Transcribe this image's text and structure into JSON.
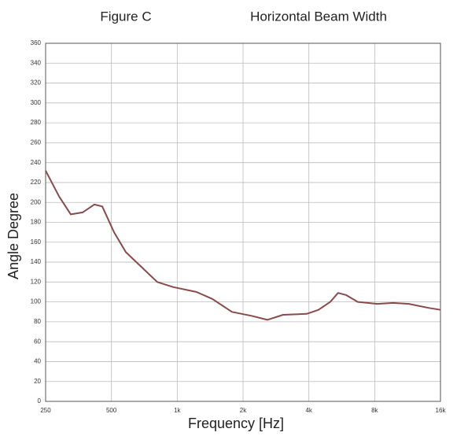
{
  "chart_data": {
    "type": "line",
    "title": "Figure C",
    "subtitle": "Horizontal Beam Width",
    "x_label": "Frequency [Hz]",
    "y_label": "Angle Degree",
    "x": [
      250,
      288,
      326,
      369,
      418,
      454,
      514,
      582,
      687,
      810,
      956,
      1226,
      1447,
      1780,
      2188,
      2583,
      3048,
      3908,
      4425,
      5011,
      5443,
      5913,
      6695,
      8236,
      9720,
      11470,
      14100,
      16000
    ],
    "values": [
      232,
      206,
      188,
      190,
      198,
      196,
      170,
      150,
      135,
      120,
      115,
      110,
      103,
      90,
      86,
      82,
      87,
      88,
      92,
      100,
      109,
      107,
      100,
      98,
      99,
      98,
      94,
      92
    ],
    "color": "#8b4a4a",
    "xlim": [
      250,
      16000
    ],
    "x_log": true,
    "xticks": [
      250,
      500,
      {
        "value": 1000,
        "label": "1k"
      },
      {
        "value": 2000,
        "label": "2k"
      },
      {
        "value": 4000,
        "label": "4k"
      },
      {
        "value": 8000,
        "label": "8k"
      },
      {
        "value": 16000,
        "label": "16k"
      }
    ],
    "ylim": [
      0,
      360
    ],
    "yticks": [
      0,
      20,
      40,
      60,
      80,
      100,
      120,
      140,
      160,
      180,
      200,
      220,
      240,
      260,
      280,
      300,
      320,
      340,
      360
    ],
    "grid": true
  }
}
